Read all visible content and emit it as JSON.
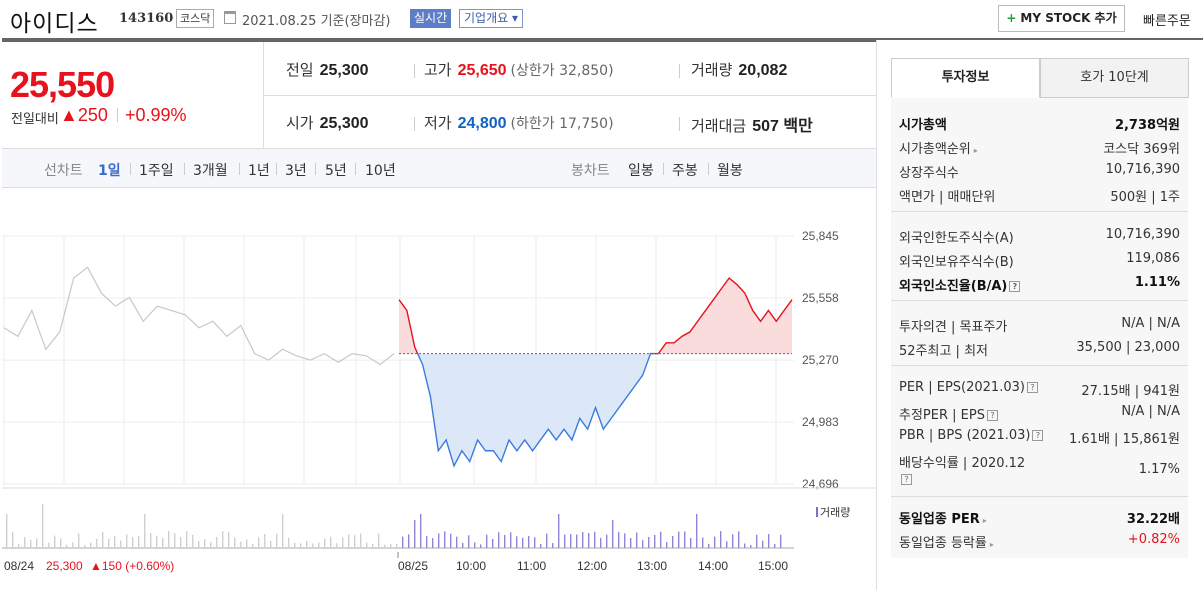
{
  "header": {
    "name": "아이디스",
    "code": "143160",
    "market": "코스닥",
    "date": "2021.08.25  기준(장마감)",
    "realtime": "실시간",
    "overview": "기업개요 ▾",
    "mystock": "MY STOCK 추가",
    "mystock_plus": "+",
    "quick_order": "빠른주문"
  },
  "price": {
    "current": "25,550",
    "change_label": "전일대비",
    "change": "▲250",
    "rate": "+0.99%"
  },
  "stats": {
    "prev_label": "전일",
    "prev": "25,300",
    "high_label": "고가",
    "high": "25,650",
    "upper_limit": "(상한가 32,850)",
    "volume_label": "거래량",
    "volume": "20,082",
    "open_label": "시가",
    "open": "25,300",
    "low_label": "저가",
    "low": "24,800",
    "lower_limit": "(하한가 17,750)",
    "amount_label": "거래대금",
    "amount": "507 백만"
  },
  "period": {
    "line_label": "선차트",
    "line_items": [
      "1일",
      "1주일",
      "3개월",
      "1년",
      "3년",
      "5년",
      "10년"
    ],
    "candle_label": "봉차트",
    "candle_items": [
      "일봉",
      "주봉",
      "월봉"
    ]
  },
  "chart_data": {
    "type": "line",
    "y_ticks": [
      "25,845",
      "25,558",
      "25,270",
      "24,983",
      "24,696"
    ],
    "ylim": [
      24696,
      25845
    ],
    "baseline": 25300,
    "x_ticks": [
      "08/24",
      "08/25",
      "10:00",
      "11:00",
      "12:00",
      "13:00",
      "14:00",
      "15:00"
    ],
    "prev_day_price": [
      25420,
      25380,
      25500,
      25320,
      25400,
      25650,
      25700,
      25580,
      25520,
      25560,
      25450,
      25520,
      25500,
      25480,
      25420,
      25450,
      25380,
      25430,
      25300,
      25270,
      25320,
      25290,
      25270,
      25300,
      25260,
      25300,
      25290,
      25250,
      25300
    ],
    "today_price": [
      25550,
      25500,
      25330,
      25250,
      25100,
      24850,
      24900,
      24780,
      24850,
      24800,
      24900,
      24850,
      24850,
      24800,
      24900,
      24850,
      24900,
      24850,
      24900,
      24950,
      24900,
      24950,
      24900,
      25000,
      24950,
      25050,
      24950,
      25000,
      25050,
      25100,
      25150,
      25200,
      25300,
      25300,
      25350,
      25350,
      25380,
      25400,
      25450,
      25500,
      25550,
      25600,
      25650,
      25620,
      25580,
      25500,
      25450,
      25500,
      25450,
      25500,
      25550
    ],
    "volume_label": "거래량",
    "footer_date": "08/24",
    "footer_price": "25,300",
    "footer_change": "▲150 (+0.60%)"
  },
  "tabs": {
    "invest": "투자정보",
    "orderbook": "호가 10단계"
  },
  "info": {
    "market_cap_k": "시가총액",
    "market_cap_v": "2,738억원",
    "cap_rank_k": "시가총액순위",
    "cap_rank_v": "코스닥 369위",
    "shares_k": "상장주식수",
    "shares_v": "10,716,390",
    "face_k": "액면가 | 매매단위",
    "face_v": "500원 | 1주",
    "foreign_limit_k": "외국인한도주식수(A)",
    "foreign_limit_v": "10,716,390",
    "foreign_hold_k": "외국인보유주식수(B)",
    "foreign_hold_v": "119,086",
    "foreign_ratio_k": "외국인소진율(B/A)",
    "foreign_ratio_v": "1.11%",
    "opinion_k": "투자의견 | 목표주가",
    "opinion_v": "N/A | N/A",
    "w52_k": "52주최고 | 최저",
    "w52_v": "35,500 | 23,000",
    "per_k": "PER | EPS(2021.03)",
    "per_v": "27.15배 | 941원",
    "est_per_k": "추정PER | EPS",
    "est_per_v": "N/A | N/A",
    "pbr_k": "PBR | BPS (2021.03)",
    "pbr_v": "1.61배 | 15,861원",
    "div_k": "배당수익률 | 2020.12",
    "div_v": "1.17%",
    "sector_per_k": "동일업종 PER",
    "sector_per_v": "32.22배",
    "sector_rate_k": "동일업종 등락률",
    "sector_rate_v": "+0.82%"
  },
  "colors": {
    "up": "#e6121d",
    "down": "#1261c4",
    "accent": "#3a6bc9"
  }
}
